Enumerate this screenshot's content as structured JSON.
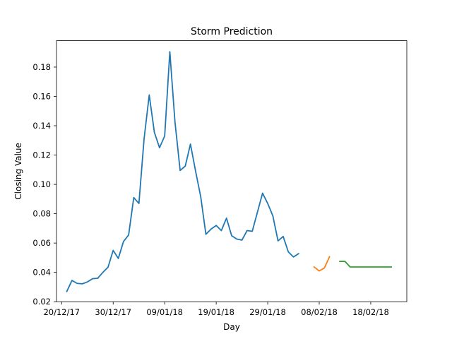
{
  "chart_data": {
    "type": "line",
    "title": "Storm Prediction",
    "xlabel": "Day",
    "ylabel": "Closing Value",
    "xlim": [
      "2017-12-19",
      "2018-02-25"
    ],
    "ylim": [
      0.02,
      0.198
    ],
    "grid": false,
    "x_ticks": [
      {
        "date": "2017-12-20",
        "label": "20/12/17"
      },
      {
        "date": "2017-12-30",
        "label": "30/12/17"
      },
      {
        "date": "2018-01-09",
        "label": "09/01/18"
      },
      {
        "date": "2018-01-19",
        "label": "19/01/18"
      },
      {
        "date": "2018-01-29",
        "label": "29/01/18"
      },
      {
        "date": "2018-02-08",
        "label": "08/02/18"
      },
      {
        "date": "2018-02-18",
        "label": "18/02/18"
      }
    ],
    "y_ticks": [
      {
        "value": 0.02,
        "label": "0.02"
      },
      {
        "value": 0.04,
        "label": "0.04"
      },
      {
        "value": 0.06,
        "label": "0.06"
      },
      {
        "value": 0.08,
        "label": "0.08"
      },
      {
        "value": 0.1,
        "label": "0.10"
      },
      {
        "value": 0.12,
        "label": "0.12"
      },
      {
        "value": 0.14,
        "label": "0.14"
      },
      {
        "value": 0.16,
        "label": "0.16"
      },
      {
        "value": 0.18,
        "label": "0.18"
      }
    ],
    "series": [
      {
        "color": "#1f77b4",
        "points": [
          [
            "2017-12-21",
            0.027
          ],
          [
            "2017-12-22",
            0.0345
          ],
          [
            "2017-12-23",
            0.0325
          ],
          [
            "2017-12-24",
            0.0322
          ],
          [
            "2017-12-25",
            0.0335
          ],
          [
            "2017-12-26",
            0.0357
          ],
          [
            "2017-12-27",
            0.036
          ],
          [
            "2017-12-28",
            0.04
          ],
          [
            "2017-12-29",
            0.0435
          ],
          [
            "2017-12-30",
            0.055
          ],
          [
            "2017-12-31",
            0.0495
          ],
          [
            "2018-01-01",
            0.061
          ],
          [
            "2018-01-02",
            0.0655
          ],
          [
            "2018-01-03",
            0.091
          ],
          [
            "2018-01-04",
            0.087
          ],
          [
            "2018-01-05",
            0.131
          ],
          [
            "2018-01-06",
            0.161
          ],
          [
            "2018-01-07",
            0.1355
          ],
          [
            "2018-01-08",
            0.125
          ],
          [
            "2018-01-09",
            0.133
          ],
          [
            "2018-01-10",
            0.1905
          ],
          [
            "2018-01-11",
            0.1425
          ],
          [
            "2018-01-12",
            0.1095
          ],
          [
            "2018-01-13",
            0.1125
          ],
          [
            "2018-01-14",
            0.1275
          ],
          [
            "2018-01-15",
            0.109
          ],
          [
            "2018-01-16",
            0.0915
          ],
          [
            "2018-01-17",
            0.066
          ],
          [
            "2018-01-18",
            0.0695
          ],
          [
            "2018-01-19",
            0.072
          ],
          [
            "2018-01-20",
            0.0685
          ],
          [
            "2018-01-21",
            0.077
          ],
          [
            "2018-01-22",
            0.065
          ],
          [
            "2018-01-23",
            0.0627
          ],
          [
            "2018-01-24",
            0.062
          ],
          [
            "2018-01-25",
            0.0685
          ],
          [
            "2018-01-26",
            0.068
          ],
          [
            "2018-01-27",
            0.081
          ],
          [
            "2018-01-28",
            0.094
          ],
          [
            "2018-01-29",
            0.087
          ],
          [
            "2018-01-30",
            0.0785
          ],
          [
            "2018-01-31",
            0.0615
          ],
          [
            "2018-02-01",
            0.0645
          ],
          [
            "2018-02-02",
            0.054
          ],
          [
            "2018-02-03",
            0.0505
          ],
          [
            "2018-02-04",
            0.0528
          ]
        ]
      },
      {
        "color": "#ff7f0e",
        "points": [
          [
            "2018-02-07",
            0.0437
          ],
          [
            "2018-02-08",
            0.041
          ],
          [
            "2018-02-09",
            0.043
          ],
          [
            "2018-02-10",
            0.0507
          ]
        ]
      },
      {
        "color": "#2ca02c",
        "points": [
          [
            "2018-02-12",
            0.0475
          ],
          [
            "2018-02-13",
            0.0475
          ],
          [
            "2018-02-14",
            0.0437
          ],
          [
            "2018-02-15",
            0.0437
          ],
          [
            "2018-02-16",
            0.0437
          ],
          [
            "2018-02-17",
            0.0437
          ],
          [
            "2018-02-18",
            0.0437
          ],
          [
            "2018-02-19",
            0.0437
          ],
          [
            "2018-02-20",
            0.0437
          ],
          [
            "2018-02-21",
            0.0437
          ],
          [
            "2018-02-22",
            0.0437
          ]
        ]
      }
    ]
  }
}
